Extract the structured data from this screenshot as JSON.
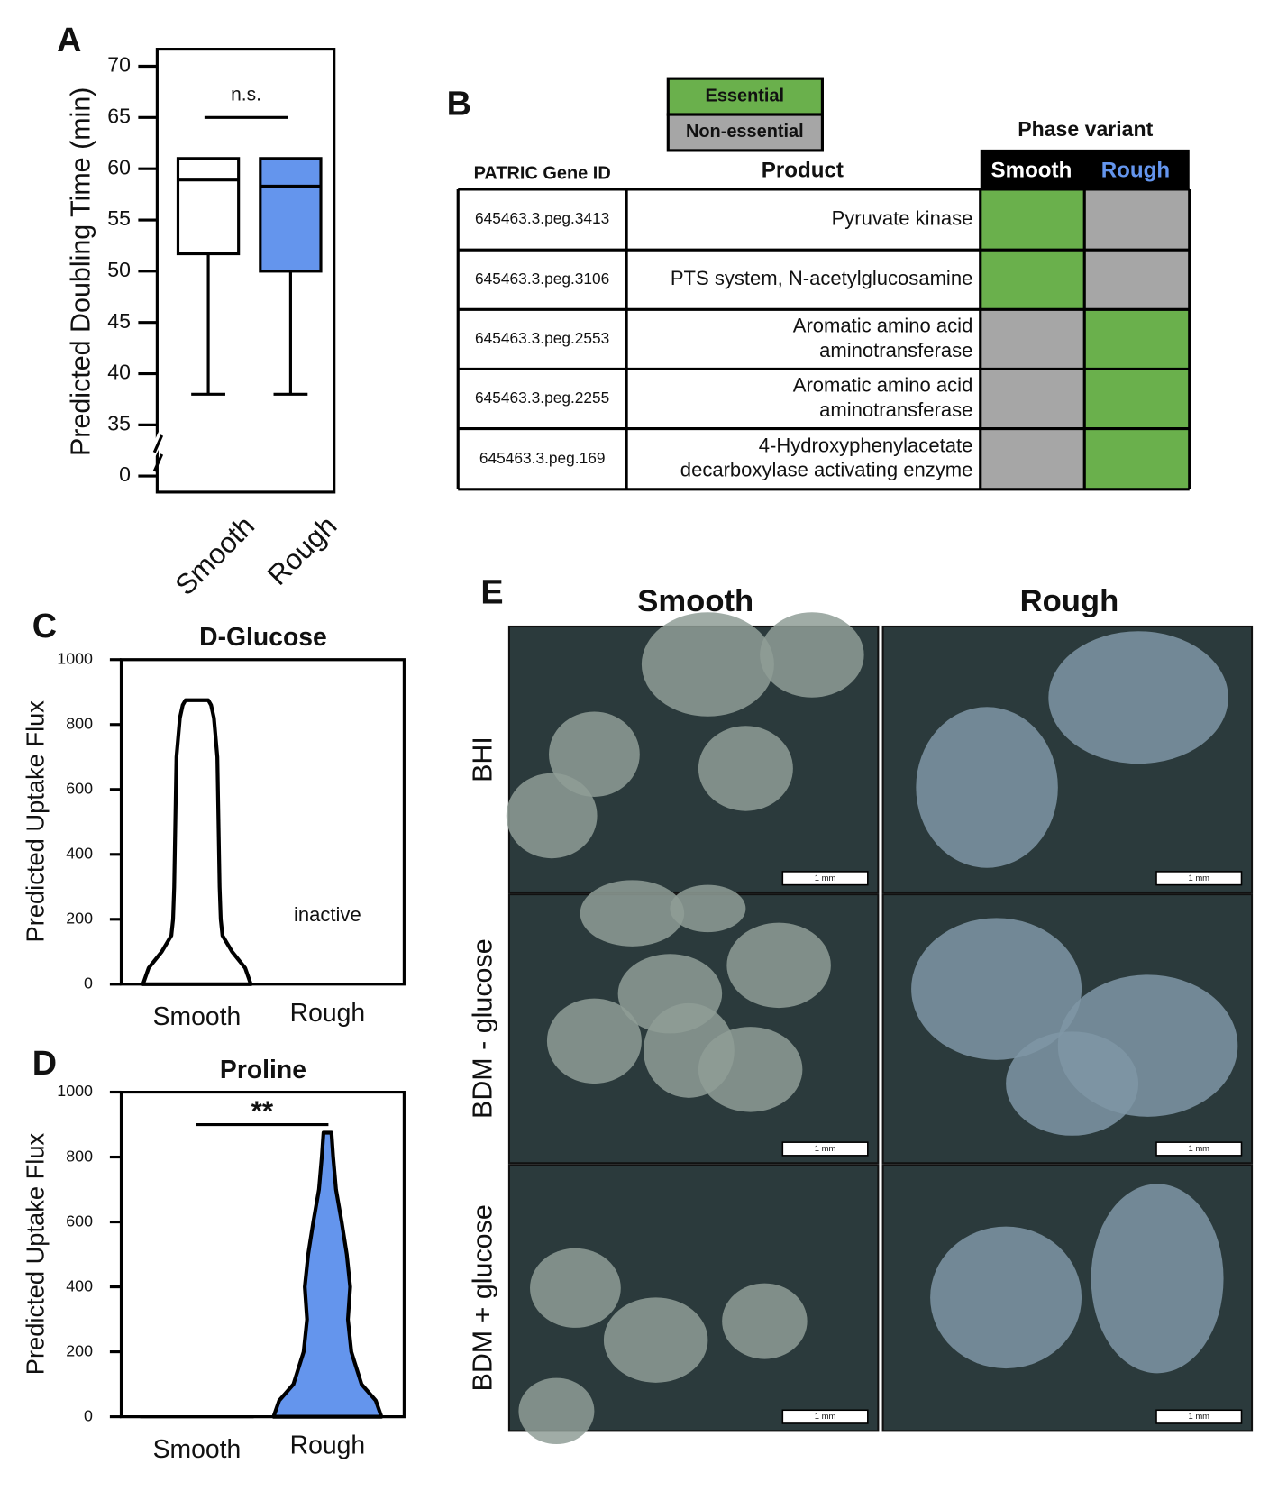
{
  "panels": [
    "A",
    "B",
    "C",
    "D",
    "E"
  ],
  "chart_data": [
    {
      "type": "box",
      "ylabel": "Predicted Doubling Time (min)",
      "ylim": [
        0,
        70
      ],
      "axis_break": [
        0,
        35
      ],
      "yticks": [
        0,
        35,
        40,
        45,
        50,
        55,
        60,
        65,
        70
      ],
      "categories": [
        "Smooth",
        "Rough"
      ],
      "series": [
        {
          "name": "Smooth",
          "color": "#ffffff",
          "values": {
            "min": 38,
            "q1": 51.7,
            "median": 58.9,
            "q3": 61,
            "max": 61
          }
        },
        {
          "name": "Rough",
          "color": "#6495ed",
          "values": {
            "min": 38,
            "q1": 50,
            "median": 58.3,
            "q3": 61,
            "max": 61
          }
        }
      ],
      "annotation": {
        "text": "n.s.",
        "y": 65
      }
    },
    {
      "type": "violin",
      "title": "D-Glucose",
      "ylabel": "Predicted Uptake Flux",
      "ylim": [
        0,
        1000
      ],
      "yticks": [
        0,
        200,
        400,
        600,
        800,
        1000
      ],
      "categories": [
        "Smooth",
        "Rough"
      ],
      "series": [
        {
          "name": "Smooth",
          "color": "#ffffff",
          "values": [
            0,
            50,
            100,
            150,
            200,
            300,
            500,
            700,
            820,
            860,
            875
          ],
          "widths": [
            0.95,
            0.85,
            0.62,
            0.45,
            0.42,
            0.4,
            0.38,
            0.36,
            0.3,
            0.25,
            0.2
          ]
        },
        {
          "name": "Rough",
          "color": "#ffffff",
          "values": [],
          "widths": []
        }
      ],
      "annotation": {
        "text": "inactive",
        "category": 1,
        "y": 70
      }
    },
    {
      "type": "violin",
      "title": "Proline",
      "ylabel": "Predicted Uptake Flux",
      "ylim": [
        0,
        1000
      ],
      "yticks": [
        0,
        200,
        400,
        600,
        800,
        1000
      ],
      "categories": [
        "Smooth",
        "Rough"
      ],
      "series": [
        {
          "name": "Smooth",
          "color": "#ffffff",
          "values": [
            0
          ],
          "widths": [
            1
          ]
        },
        {
          "name": "Rough",
          "color": "#6495ed",
          "values": [
            0,
            50,
            100,
            200,
            300,
            400,
            500,
            600,
            700,
            800,
            875
          ],
          "widths": [
            0.95,
            0.85,
            0.6,
            0.42,
            0.36,
            0.4,
            0.34,
            0.25,
            0.15,
            0.1,
            0.07
          ]
        }
      ],
      "annotation": {
        "text": "**",
        "y": 900
      }
    }
  ],
  "table": {
    "legend": [
      {
        "label": "Essential",
        "color": "#6ab04c"
      },
      {
        "label": "Non-essential",
        "color": "#a6a6a6"
      }
    ],
    "group_header": "Phase variant",
    "headers": [
      "PATRIC Gene ID",
      "Product",
      "Smooth",
      "Rough"
    ],
    "rows": [
      {
        "id": "645463.3.peg.3413",
        "product": [
          "Pyruvate kinase"
        ],
        "smooth": 0,
        "rough": 1
      },
      {
        "id": "645463.3.peg.3106",
        "product": [
          "PTS system, N-acetylglucosamine"
        ],
        "smooth": 0,
        "rough": 1
      },
      {
        "id": "645463.3.peg.2553",
        "product": [
          "Aromatic amino acid",
          "aminotransferase"
        ],
        "smooth": 1,
        "rough": 0
      },
      {
        "id": "645463.3.peg.2255",
        "product": [
          "Aromatic amino acid",
          "aminotransferase"
        ],
        "smooth": 1,
        "rough": 0
      },
      {
        "id": "645463.3.peg.169",
        "product": [
          "4-Hydroxyphenylacetate",
          "decarboxylase activating enzyme"
        ],
        "smooth": 1,
        "rough": 0
      }
    ]
  },
  "photos": {
    "columns": [
      "Smooth",
      "Rough"
    ],
    "rows": [
      "BHI",
      "BDM - glucose",
      "BDM + glucose"
    ],
    "scale_bar": "1 mm"
  }
}
